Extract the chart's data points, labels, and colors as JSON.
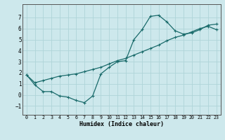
{
  "title": "",
  "xlabel": "Humidex (Indice chaleur)",
  "ylabel": "",
  "xlim": [
    -0.5,
    23.5
  ],
  "ylim": [
    -1.8,
    8.2
  ],
  "yticks": [
    -1,
    0,
    1,
    2,
    3,
    4,
    5,
    6,
    7
  ],
  "xticks": [
    0,
    1,
    2,
    3,
    4,
    5,
    6,
    7,
    8,
    9,
    10,
    11,
    12,
    13,
    14,
    15,
    16,
    17,
    18,
    19,
    20,
    21,
    22,
    23
  ],
  "bg_color": "#cde8ec",
  "grid_color": "#afd4d8",
  "line_color": "#1a6b6b",
  "curve1_x": [
    0,
    1,
    2,
    3,
    4,
    5,
    6,
    7,
    8,
    9,
    10,
    11,
    12,
    13,
    14,
    15,
    16,
    17,
    18,
    19,
    20,
    21,
    22,
    23
  ],
  "curve1_y": [
    1.8,
    0.9,
    0.3,
    0.3,
    -0.1,
    -0.2,
    -0.5,
    -0.7,
    -0.1,
    1.9,
    2.5,
    3.0,
    3.1,
    5.0,
    5.9,
    7.1,
    7.2,
    6.6,
    5.8,
    5.5,
    5.6,
    5.9,
    6.3,
    6.4
  ],
  "curve2_x": [
    0,
    1,
    2,
    3,
    4,
    5,
    6,
    7,
    8,
    9,
    10,
    11,
    12,
    13,
    14,
    15,
    16,
    17,
    18,
    19,
    20,
    21,
    22,
    23
  ],
  "curve2_y": [
    1.8,
    1.1,
    1.3,
    1.5,
    1.7,
    1.8,
    1.9,
    2.1,
    2.3,
    2.5,
    2.8,
    3.1,
    3.3,
    3.6,
    3.9,
    4.2,
    4.5,
    4.9,
    5.2,
    5.4,
    5.7,
    6.0,
    6.2,
    5.9
  ]
}
